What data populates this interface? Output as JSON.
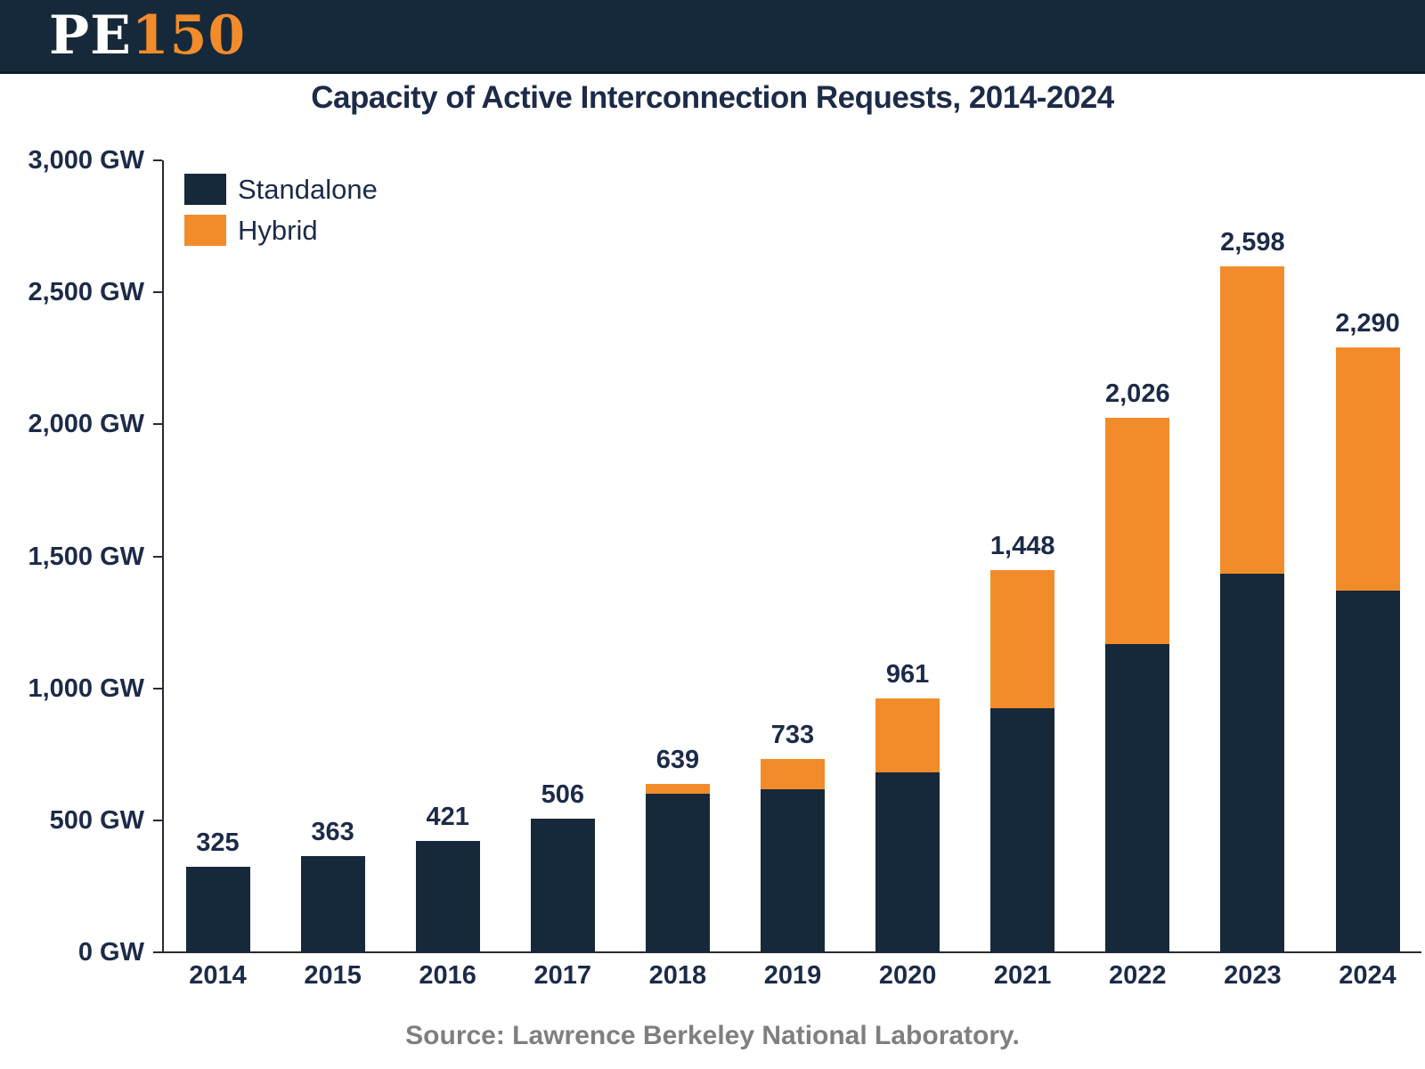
{
  "header": {
    "logo_part1": "PE",
    "logo_part2": "150"
  },
  "chart": {
    "title": "Capacity of Active Interconnection Requests, 2014-2024",
    "source": "Source: Lawrence Berkeley National Laboratory."
  },
  "colors": {
    "header_navy": "#16293A",
    "bar_navy": "#16293A",
    "bar_orange": "#F28C2B",
    "text_navy": "#1C2B49",
    "source_gray": "#7F7F7F",
    "axis": "#2A2A33"
  },
  "chart_data": {
    "type": "bar",
    "stacked": true,
    "title": "Capacity of Active Interconnection Requests, 2014-2024",
    "categories": [
      "2014",
      "2015",
      "2016",
      "2017",
      "2018",
      "2019",
      "2020",
      "2021",
      "2022",
      "2023",
      "2024"
    ],
    "series": [
      {
        "name": "Standalone",
        "color": "#16293A",
        "values": [
          325,
          363,
          421,
          506,
          601,
          617,
          680,
          925,
          1166,
          1435,
          1370
        ]
      },
      {
        "name": "Hybrid",
        "color": "#F28C2B",
        "values": [
          0,
          0,
          0,
          0,
          38,
          116,
          281,
          523,
          860,
          1163,
          920
        ]
      }
    ],
    "totals": [
      325,
      363,
      421,
      506,
      639,
      733,
      961,
      1448,
      2026,
      2598,
      2290
    ],
    "total_labels": [
      "325",
      "363",
      "421",
      "506",
      "639",
      "733",
      "961",
      "1,448",
      "2,026",
      "2,598",
      "2,290"
    ],
    "y_ticks": [
      {
        "value": 0,
        "label": "0 GW"
      },
      {
        "value": 500,
        "label": "500 GW"
      },
      {
        "value": 1000,
        "label": "1,000 GW"
      },
      {
        "value": 1500,
        "label": "1,500 GW"
      },
      {
        "value": 2000,
        "label": "2,000 GW"
      },
      {
        "value": 2500,
        "label": "2,500 GW"
      },
      {
        "value": 3000,
        "label": "3,000 GW"
      }
    ],
    "ylim": [
      0,
      3000
    ],
    "ylabel": "GW",
    "xlabel": "",
    "grid": false,
    "legend_position": "top-left",
    "source": "Source: Lawrence Berkeley National Laboratory."
  }
}
